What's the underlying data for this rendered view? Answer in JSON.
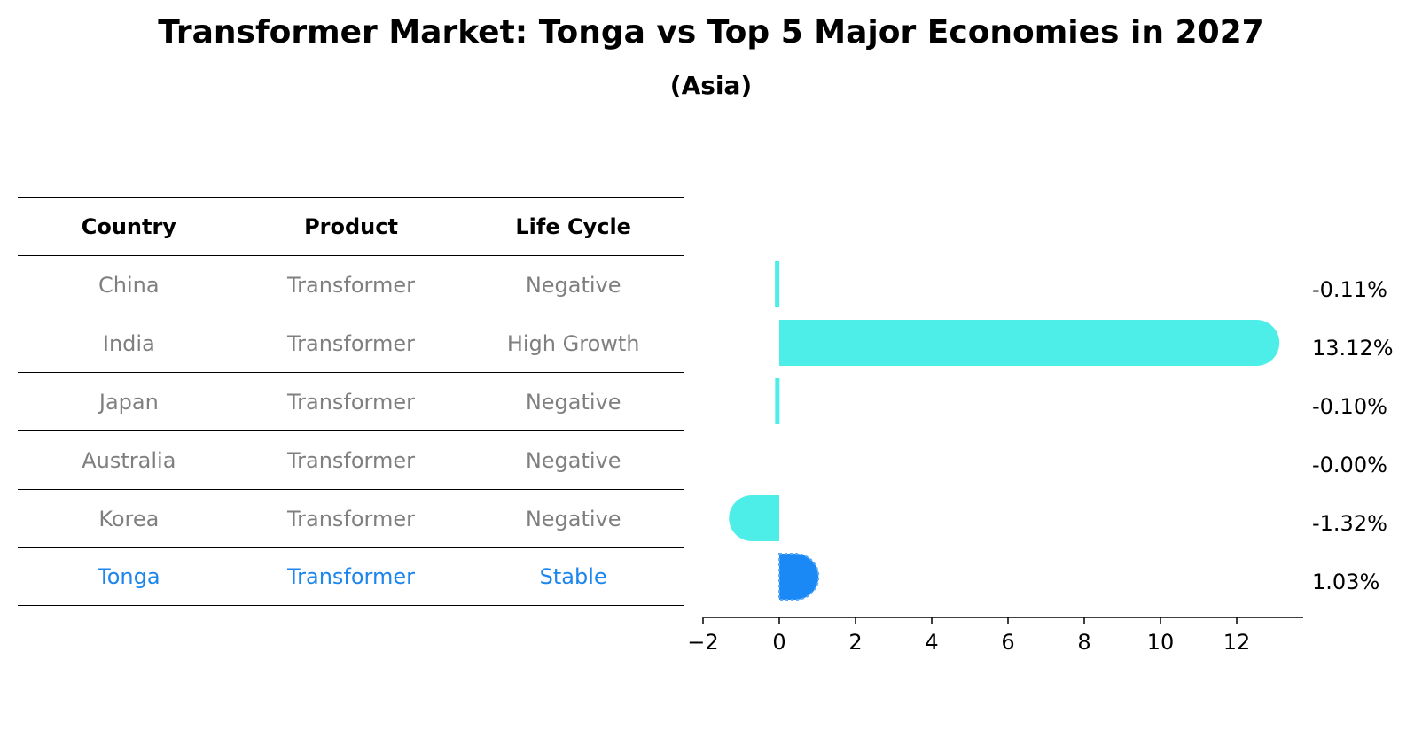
{
  "title": "Transformer Market: Tonga vs Top 5 Major Economies in 2027",
  "subtitle": "(Asia)",
  "table": {
    "headers": [
      "Country",
      "Product",
      "Life Cycle"
    ],
    "rows": [
      [
        "China",
        "Transformer",
        "Negative"
      ],
      [
        "India",
        "Transformer",
        "High Growth"
      ],
      [
        "Japan",
        "Transformer",
        "Negative"
      ],
      [
        "Australia",
        "Transformer",
        "Negative"
      ],
      [
        "Korea",
        "Transformer",
        "Negative"
      ],
      [
        "Tonga",
        "Transformer",
        "Stable"
      ]
    ],
    "highlight_row": 5
  },
  "chart_data": {
    "type": "bar",
    "orientation": "horizontal",
    "categories": [
      "China",
      "India",
      "Japan",
      "Australia",
      "Korea",
      "Tonga"
    ],
    "values": [
      -0.11,
      13.12,
      -0.1,
      -0.0,
      -1.32,
      1.03
    ],
    "value_labels": [
      "-0.11%",
      "13.12%",
      "-0.10%",
      "-0.00%",
      "-1.32%",
      "1.03%"
    ],
    "highlight": "Tonga",
    "colors": {
      "default": "#4deee8",
      "highlight": "#1a88f5"
    },
    "xlim": [
      -2,
      13.5
    ],
    "xticks": [
      -2,
      0,
      2,
      4,
      6,
      8,
      10,
      12
    ],
    "xtick_labels": [
      "−2",
      "0",
      "2",
      "4",
      "6",
      "8",
      "10",
      "12"
    ],
    "title": "Transformer Market: Tonga vs Top 5 Major Economies in 2027",
    "xlabel": "",
    "ylabel": ""
  }
}
